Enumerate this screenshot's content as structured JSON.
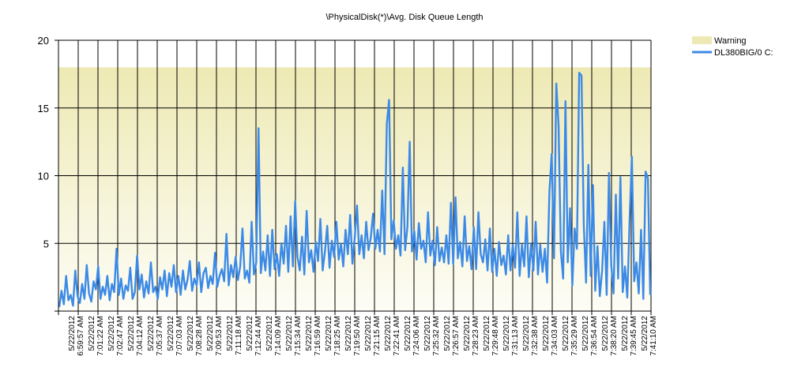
{
  "chart_data": {
    "type": "line",
    "title": "\\PhysicalDisk(*)\\Avg. Disk Queue Length",
    "xlabel": "",
    "ylabel": "",
    "ylim": [
      0,
      20
    ],
    "y_ticks": [
      "0",
      "5",
      "10",
      "15",
      "20"
    ],
    "grid": true,
    "legend_position": "top-right",
    "warning_band": {
      "name": "Warning",
      "from": 0,
      "to": 18,
      "color_top": "#eee9b4",
      "color_bottom": "#fdfdf6"
    },
    "x_tick_labels": [
      [
        "5/22/2012",
        "6:59:57 AM"
      ],
      [
        "5/22/2012",
        "7:01:22 AM"
      ],
      [
        "5/22/2012",
        "7:02:47 AM"
      ],
      [
        "5/22/2012",
        "7:04:12 AM"
      ],
      [
        "5/22/2012",
        "7:05:37 AM"
      ],
      [
        "5/22/2012",
        "7:07:03 AM"
      ],
      [
        "5/22/2012",
        "7:08:28 AM"
      ],
      [
        "5/22/2012",
        "7:09:53 AM"
      ],
      [
        "5/22/2012",
        "7:11:18 AM"
      ],
      [
        "5/22/2012",
        "7:12:44 AM"
      ],
      [
        "5/22/2012",
        "7:14:09 AM"
      ],
      [
        "5/22/2012",
        "7:15:34 AM"
      ],
      [
        "5/22/2012",
        "7:16:59 AM"
      ],
      [
        "5/22/2012",
        "7:18:25 AM"
      ],
      [
        "5/22/2012",
        "7:19:50 AM"
      ],
      [
        "5/22/2012",
        "7:21:15 AM"
      ],
      [
        "5/22/2012",
        "7:22:41 AM"
      ],
      [
        "5/22/2012",
        "7:24:06 AM"
      ],
      [
        "5/22/2012",
        "7:25:32 AM"
      ],
      [
        "5/22/2012",
        "7:26:57 AM"
      ],
      [
        "5/22/2012",
        "7:28:23 AM"
      ],
      [
        "5/22/2012",
        "7:29:48 AM"
      ],
      [
        "5/22/2012",
        "7:31:13 AM"
      ],
      [
        "5/22/2012",
        "7:32:38 AM"
      ],
      [
        "5/22/2012",
        "7:34:03 AM"
      ],
      [
        "5/22/2012",
        "7:35:29 AM"
      ],
      [
        "5/22/2012",
        "7:36:54 AM"
      ],
      [
        "5/22/2012",
        "7:38:20 AM"
      ],
      [
        "5/22/2012",
        "7:39:45 AM"
      ],
      [
        "5/22/2012",
        "7:41:10 AM"
      ]
    ],
    "series": [
      {
        "name": "DL380BIG/0 C:",
        "color": "#3c8ae6",
        "values": [
          0.3,
          1.5,
          0.5,
          2.6,
          0.8,
          1.2,
          0.4,
          3.0,
          1.1,
          0.6,
          2.0,
          0.9,
          3.4,
          1.3,
          0.7,
          2.2,
          1.6,
          3.3,
          0.9,
          1.8,
          1.2,
          2.6,
          0.8,
          2.0,
          1.4,
          4.6,
          1.2,
          2.4,
          0.9,
          1.9,
          1.5,
          3.2,
          0.9,
          1.4,
          4.1,
          1.6,
          2.7,
          1.0,
          2.2,
          1.3,
          3.6,
          1.4,
          1.8,
          0.9,
          2.5,
          1.6,
          3.0,
          1.1,
          2.8,
          1.8,
          3.4,
          1.4,
          2.6,
          1.2,
          3.0,
          1.6,
          2.3,
          3.7,
          1.5,
          2.4,
          1.9,
          3.6,
          1.4,
          2.8,
          3.2,
          1.7,
          2.6,
          2.0,
          4.3,
          1.8,
          2.6,
          3.1,
          2.2,
          5.7,
          1.9,
          3.4,
          2.5,
          4.0,
          2.3,
          3.3,
          6.1,
          2.4,
          3.0,
          2.1,
          6.6,
          2.7,
          3.6,
          13.5,
          2.8,
          4.4,
          3.0,
          5.6,
          2.6,
          6.0,
          3.1,
          4.2,
          2.6,
          5.0,
          3.5,
          6.3,
          2.9,
          7.0,
          3.3,
          8.1,
          4.0,
          3.0,
          5.5,
          2.7,
          7.4,
          3.6,
          4.5,
          2.9,
          5.1,
          3.7,
          6.8,
          3.0,
          4.4,
          6.3,
          3.2,
          5.2,
          4.0,
          6.6,
          3.8,
          5.0,
          3.3,
          6.0,
          4.2,
          7.1,
          3.5,
          5.4,
          7.8,
          4.2,
          5.6,
          3.9,
          6.6,
          4.5,
          5.4,
          7.2,
          4.6,
          6.0,
          4.4,
          8.9,
          4.2,
          13.8,
          15.6,
          5.3,
          6.7,
          4.6,
          5.6,
          4.1,
          10.6,
          4.5,
          6.2,
          12.5,
          4.4,
          5.9,
          3.8,
          6.5,
          4.6,
          5.2,
          3.6,
          7.3,
          4.1,
          5.2,
          3.4,
          6.2,
          3.7,
          4.7,
          3.6,
          5.6,
          3.5,
          8.0,
          3.5,
          8.4,
          3.9,
          5.1,
          3.3,
          7.0,
          3.7,
          4.8,
          3.1,
          6.2,
          3.1,
          7.3,
          4.2,
          3.6,
          5.3,
          3.0,
          6.1,
          2.9,
          4.6,
          2.6,
          5.1,
          3.4,
          4.1,
          2.7,
          5.6,
          3.0,
          4.9,
          3.2,
          7.3,
          2.6,
          4.9,
          3.3,
          7.0,
          2.5,
          5.0,
          3.0,
          6.6,
          2.7,
          4.9,
          2.9,
          4.6,
          2.1,
          8.8,
          11.6,
          3.9,
          16.8,
          13.7,
          4.4,
          2.4,
          15.5,
          3.6,
          7.6,
          1.9,
          6.1,
          4.6,
          17.6,
          17.4,
          6.4,
          2.1,
          10.8,
          2.6,
          9.3,
          1.5,
          4.8,
          1.1,
          3.0,
          6.6,
          1.2,
          10.2,
          3.4,
          1.3,
          8.6,
          2.4,
          9.9,
          1.4,
          3.3,
          1.0,
          6.7,
          11.4,
          2.2,
          3.6,
          1.3,
          6.0,
          0.9,
          10.3,
          9.8,
          1.2
        ]
      }
    ]
  }
}
